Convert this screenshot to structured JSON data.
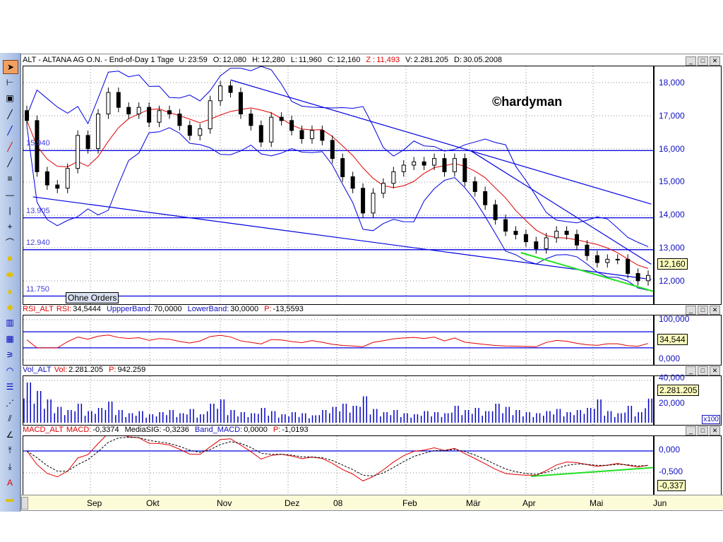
{
  "header": {
    "title": "ALT - ALTANA AG O.N. - End-of-Day 1 Tage",
    "fields": [
      {
        "label": "U:",
        "value": "23:59",
        "color": "#000"
      },
      {
        "label": "O:",
        "value": "12,080",
        "color": "#000"
      },
      {
        "label": "H:",
        "value": "12,280",
        "color": "#000"
      },
      {
        "label": "L:",
        "value": "11,960",
        "color": "#000"
      },
      {
        "label": "C:",
        "value": "12,160",
        "color": "#000"
      },
      {
        "label": "Z :",
        "value": "11,493",
        "color": "#e00000"
      },
      {
        "label": "V:",
        "value": "2.281.205",
        "color": "#000"
      },
      {
        "label": "D:",
        "value": "30.05.2008",
        "color": "#000"
      }
    ]
  },
  "watermark": "©hardyman",
  "price_levels": [
    {
      "label": "15.940",
      "value": 15.94
    },
    {
      "label": "13.905",
      "value": 13.905
    },
    {
      "label": "12.940",
      "value": 12.94
    },
    {
      "label": "11.750",
      "value": 11.75
    }
  ],
  "orders_button": "Ohne Orders",
  "price_axis": {
    "ticks": [
      "18,000",
      "17,000",
      "16,000",
      "15,000",
      "14,000",
      "13,000",
      "12,000"
    ],
    "last": "12,160"
  },
  "rsi": {
    "name": "RSI_ALT",
    "fields": [
      {
        "label": "RSI:",
        "value": "34,5444",
        "lc": "#e00000"
      },
      {
        "label": "UppperBand:",
        "value": "70,0000",
        "lc": "#1010c0"
      },
      {
        "label": "LowerBand:",
        "value": "30,0000",
        "lc": "#1010c0"
      },
      {
        "label": "P:",
        "value": "-13,5593",
        "lc": "#e00000"
      }
    ],
    "ticks": [
      "100,000",
      "0,000"
    ],
    "last": "34,544",
    "upper": 70,
    "lower": 30
  },
  "vol": {
    "name": "Vol_ALT",
    "fields": [
      {
        "label": "Vol:",
        "value": "2.281.205",
        "lc": "#e00000"
      },
      {
        "label": "P:",
        "value": "942.259",
        "lc": "#e00000"
      }
    ],
    "ticks": [
      "40,000",
      "20,000"
    ],
    "last": "2.281.205",
    "multiplier": "x100"
  },
  "macd": {
    "name": "MACD_ALT",
    "fields": [
      {
        "label": "MACD:",
        "value": "-0,3374",
        "lc": "#e00000"
      },
      {
        "label": "MediaSIG:",
        "value": "-0,3236",
        "lc": "#000"
      },
      {
        "label": "Band_MACD:",
        "value": "0,0000",
        "lc": "#1010c0"
      },
      {
        "label": "P:",
        "value": "-1,0193",
        "lc": "#e00000"
      }
    ],
    "ticks": [
      "0,000",
      "-0,500"
    ],
    "last": "-0,337"
  },
  "xaxis": [
    "Sep",
    "Okt",
    "Nov",
    "Dez",
    "08",
    "Feb",
    "Mär",
    "Apr",
    "Mai",
    "Jun"
  ],
  "colors": {
    "candle": "#000",
    "sma": "#e00000",
    "bands": "#0000e0",
    "trend": "#0000e0",
    "green": "#20e020"
  },
  "chart_data": {
    "type": "candlestick",
    "ylim": [
      11.4,
      18.3
    ],
    "closes": [
      16.85,
      15.3,
      14.9,
      14.8,
      15.4,
      16.4,
      16.0,
      17.05,
      17.7,
      17.25,
      17.05,
      17.25,
      16.8,
      17.15,
      17.05,
      16.7,
      16.4,
      16.6,
      17.45,
      17.9,
      17.7,
      17.05,
      16.7,
      16.2,
      16.95,
      16.85,
      16.55,
      16.3,
      16.55,
      16.25,
      15.7,
      15.15,
      14.8,
      14.05,
      14.65,
      14.95,
      15.3,
      15.5,
      15.6,
      15.5,
      15.7,
      15.3,
      15.7,
      15.0,
      14.7,
      14.3,
      13.85,
      13.5,
      13.4,
      13.18,
      12.97,
      13.3,
      13.5,
      13.4,
      13.08,
      12.76,
      12.55,
      12.65,
      12.65,
      12.22,
      12.0,
      12.16
    ],
    "volumes_x100": [
      38000,
      30000,
      22000,
      15000,
      12000,
      18000,
      11000,
      14000,
      20000,
      12000,
      9000,
      11000,
      8000,
      10000,
      12000,
      9000,
      13000,
      8000,
      18000,
      22000,
      12000,
      10000,
      9000,
      14000,
      11000,
      8000,
      10000,
      9000,
      7000,
      12000,
      15000,
      18000,
      16000,
      25000,
      13000,
      10000,
      12000,
      9000,
      8000,
      11000,
      10000,
      9000,
      16000,
      12000,
      14000,
      11000,
      18000,
      15000,
      12000,
      10000,
      9000,
      11000,
      13000,
      10000,
      12000,
      14000,
      22000,
      11000,
      9000,
      16000,
      10000,
      22812
    ],
    "trendlines": [
      {
        "from": [
          20,
          18.08
        ],
        "to": [
          61.3,
          14.32
        ],
        "color": "blue"
      },
      {
        "from": [
          43.5,
          15.95
        ],
        "to": [
          61.3,
          12.5
        ],
        "color": "blue"
      },
      {
        "from": [
          0.6,
          14.54
        ],
        "to": [
          61.3,
          12.04
        ],
        "color": "blue"
      },
      {
        "from": [
          48.5,
          12.85
        ],
        "to": [
          61.5,
          11.68
        ],
        "color": "green"
      }
    ],
    "macd_trendline": {
      "from": [
        49.5,
        -0.58
      ],
      "to": [
        61.5,
        -0.38
      ],
      "color": "green"
    },
    "rsi_ylim": [
      0,
      100
    ],
    "vol_ylim": [
      0,
      40000
    ],
    "macd_ylim": [
      -1.0,
      0.3
    ]
  }
}
